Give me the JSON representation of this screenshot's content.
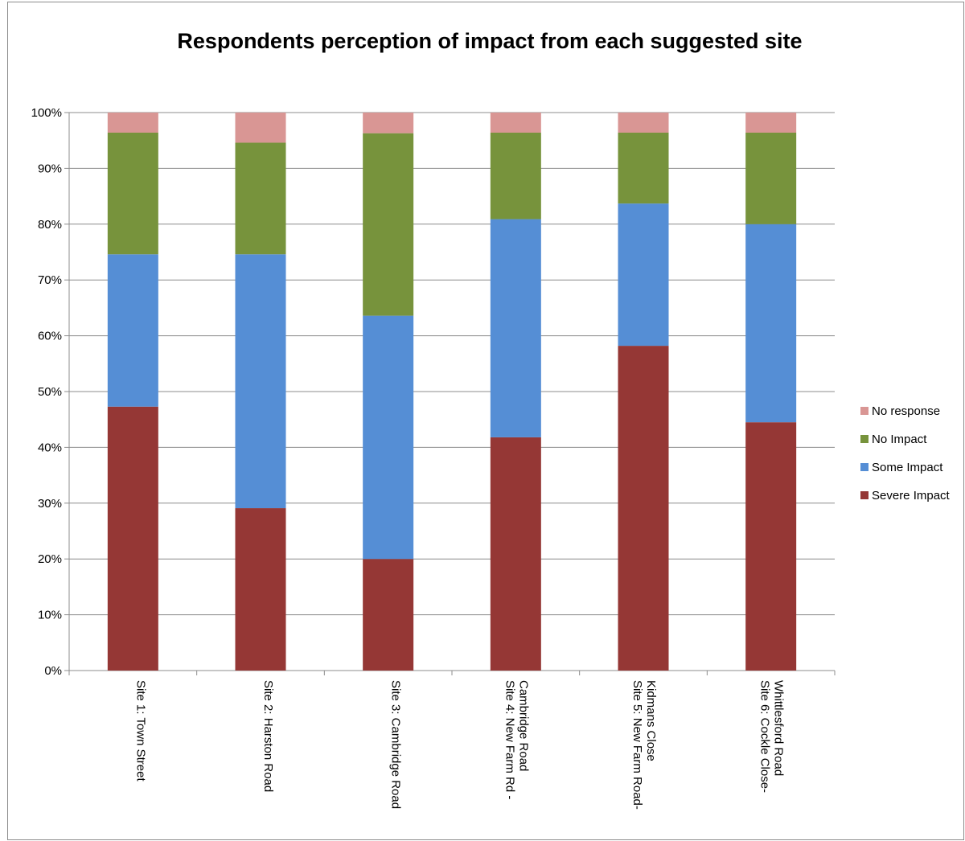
{
  "chart_data": {
    "type": "bar",
    "stacked": true,
    "percent": true,
    "title": "Respondents perception of impact from each suggested site",
    "xlabel": "",
    "ylabel": "",
    "ylim": [
      0,
      100
    ],
    "yticks": [
      "0%",
      "10%",
      "20%",
      "30%",
      "40%",
      "50%",
      "60%",
      "70%",
      "80%",
      "90%",
      "100%"
    ],
    "grid": true,
    "legend_position": "right",
    "categories": [
      [
        "Site 1: Town Street"
      ],
      [
        "Site 2: Harston Road"
      ],
      [
        "Site 3: Cambridge Road"
      ],
      [
        "Site 4: New Farm Rd -",
        "Cambridge Road"
      ],
      [
        "Site 5: New Farm Road-",
        "Kidmans Close"
      ],
      [
        "Site 6: Cockle Close-",
        "Whittlesford Road"
      ]
    ],
    "series": [
      {
        "name": "Severe Impact",
        "color": "#953735",
        "values": [
          47.3,
          29.1,
          20.0,
          41.8,
          58.2,
          44.5
        ]
      },
      {
        "name": "Some Impact",
        "color": "#558ed5",
        "values": [
          27.3,
          45.5,
          43.6,
          39.1,
          25.5,
          35.5
        ]
      },
      {
        "name": "No Impact",
        "color": "#77933c",
        "values": [
          21.8,
          20.0,
          32.7,
          15.5,
          12.7,
          16.4
        ]
      },
      {
        "name": "No response",
        "color": "#d99694",
        "values": [
          3.6,
          5.4,
          3.7,
          3.6,
          3.6,
          3.6
        ]
      }
    ]
  }
}
